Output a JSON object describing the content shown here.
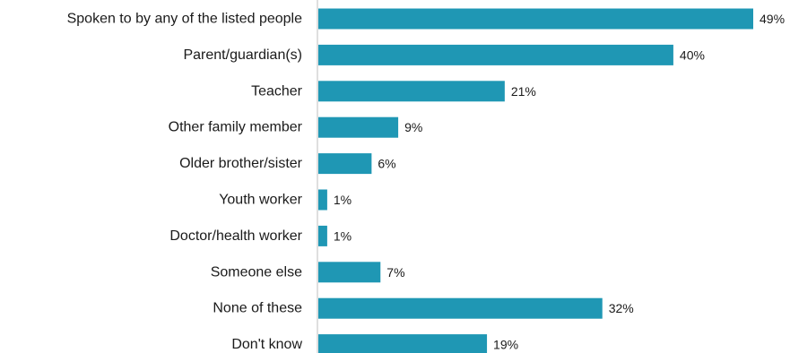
{
  "chart_data": {
    "type": "bar",
    "orientation": "horizontal",
    "title": "",
    "xlabel": "",
    "ylabel": "",
    "categories": [
      "Spoken to by any of the listed people",
      "Parent/guardian(s)",
      "Teacher",
      "Other family member",
      "Older brother/sister",
      "Youth worker",
      "Doctor/health worker",
      "Someone else",
      "None of these",
      "Don't know"
    ],
    "values": [
      49,
      40,
      21,
      9,
      6,
      1,
      1,
      7,
      32,
      19
    ],
    "value_labels": [
      "49%",
      "40%",
      "21%",
      "9%",
      "6%",
      "1%",
      "1%",
      "7%",
      "32%",
      "19%"
    ],
    "unit": "%",
    "xlim": [
      0,
      50
    ],
    "grid": false,
    "legend": "none",
    "bar_color": "#1f97b4",
    "axis_color": "#bfbfbf"
  }
}
